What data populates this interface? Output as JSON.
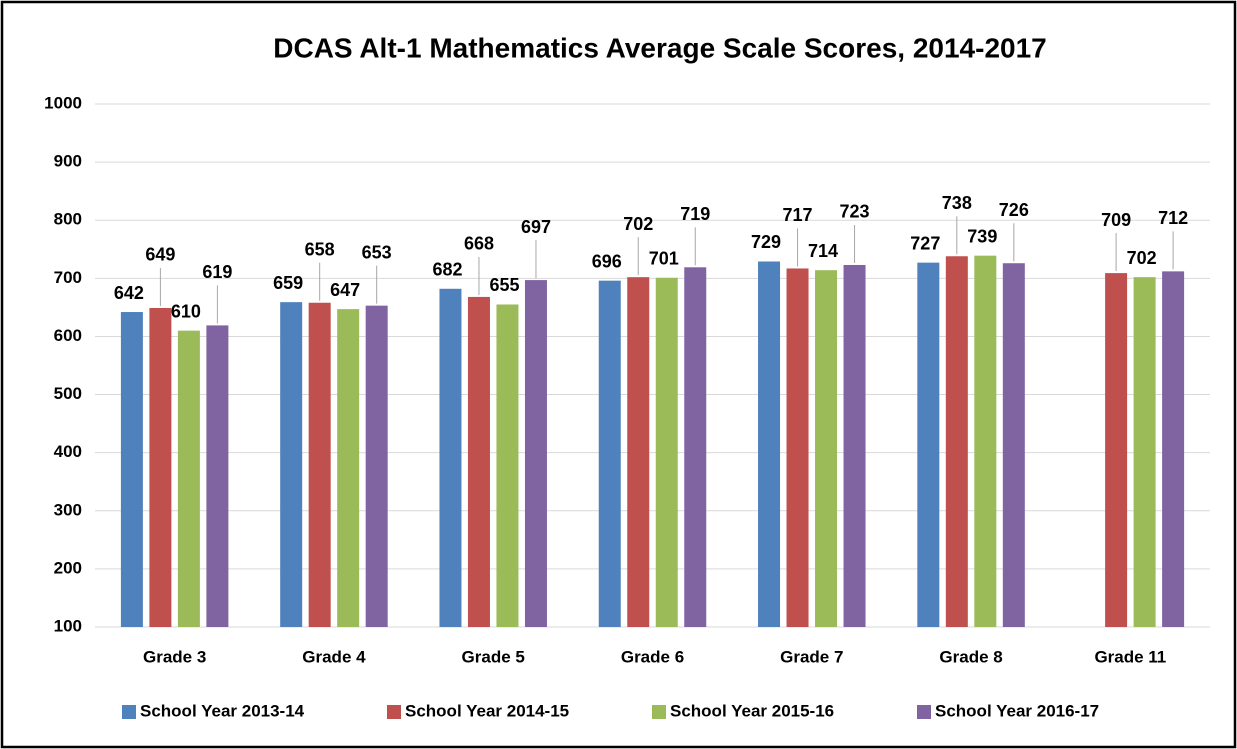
{
  "chart_data": {
    "type": "bar",
    "title": "DCAS Alt-1 Mathematics Average Scale Scores, 2014-2017",
    "categories": [
      "Grade 3",
      "Grade 4",
      "Grade 5",
      "Grade 6",
      "Grade 7",
      "Grade 8",
      "Grade 11"
    ],
    "series": [
      {
        "name": "School Year 2013-14",
        "color": "#4f81bd",
        "values": [
          642,
          659,
          682,
          696,
          729,
          727,
          null
        ]
      },
      {
        "name": "School Year 2014-15",
        "color": "#c0504d",
        "values": [
          649,
          658,
          668,
          702,
          717,
          738,
          709
        ]
      },
      {
        "name": "School Year 2015-16",
        "color": "#9bbb59",
        "values": [
          610,
          647,
          655,
          701,
          714,
          739,
          702
        ]
      },
      {
        "name": "School Year 2016-17",
        "color": "#8064a2",
        "values": [
          619,
          653,
          697,
          719,
          723,
          726,
          712
        ]
      }
    ],
    "ylim": [
      100,
      1000
    ],
    "yticks": [
      100,
      200,
      300,
      400,
      500,
      600,
      700,
      800,
      900,
      1000
    ],
    "grid": true,
    "legend": "bottom"
  }
}
